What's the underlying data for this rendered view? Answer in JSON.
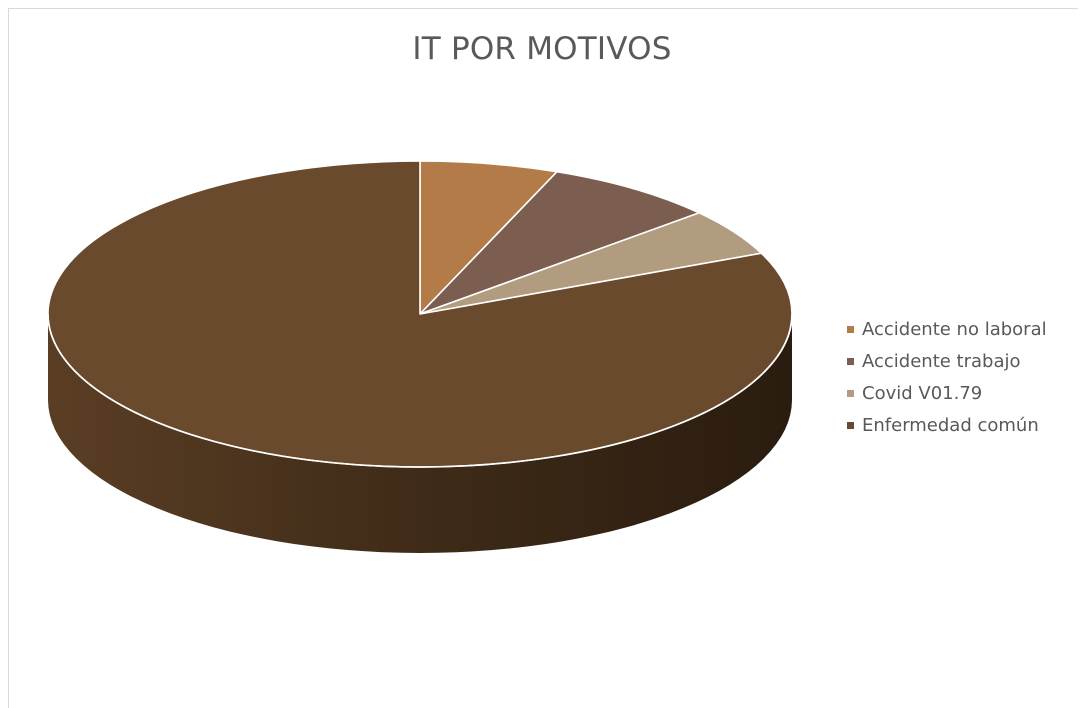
{
  "chart_data": {
    "type": "pie",
    "title": "IT POR MOTIVOS",
    "categories": [
      "Accidente no laboral",
      "Accidente trabajo",
      "Covid V01.79",
      "Enfermedad común"
    ],
    "values": [
      6.0,
      7.5,
      5.0,
      81.5
    ],
    "colors": [
      "#b27b47",
      "#7c5e51",
      "#b19c80",
      "#6a4a2c"
    ],
    "side_colors": [
      "#7d5632",
      "#574239",
      "#7d6d5a",
      "#4f361f"
    ],
    "legend": "right",
    "three_d": true
  }
}
